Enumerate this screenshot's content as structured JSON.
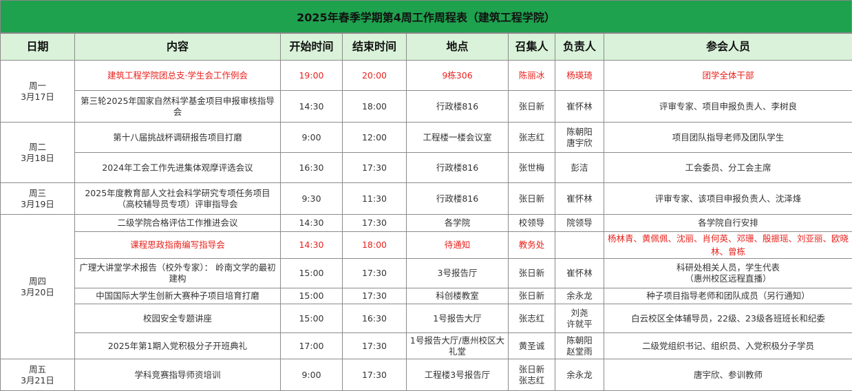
{
  "title": "2025年春季学期第4周工作周程表（建筑工程学院）",
  "columns": [
    "日期",
    "内容",
    "开始时间",
    "结束时间",
    "地点",
    "召集人",
    "负责人",
    "参会人员"
  ],
  "highlight_color": "#e8211c",
  "days": [
    {
      "day": "周一",
      "date": "3月17日",
      "events": [
        {
          "content": "建筑工程学院团总支·学生会工作例会",
          "start": "19:00",
          "end": "20:00",
          "place": "9栋306",
          "convener": "陈丽冰",
          "leader": "杨瑛琦",
          "attendees": "团学全体干部",
          "highlight": true
        },
        {
          "content": "第三轮2025年国家自然科学基金项目申报审核指导会",
          "start": "14:30",
          "end": "18:00",
          "place": "行政楼816",
          "convener": "张日新",
          "leader": "崔怀林",
          "attendees": "评审专家、项目申报负责人、李树良"
        }
      ]
    },
    {
      "day": "周二",
      "date": "3月18日",
      "events": [
        {
          "content": "第十八届挑战杯调研报告项目打磨",
          "start": "9:00",
          "end": "12:00",
          "place": "工程楼一楼会议室",
          "convener": "张志红",
          "leader": "陈朝阳\n唐宇欣",
          "attendees": "项目团队指导老师及团队学生"
        },
        {
          "content": "2024年工会工作先进集体观摩评选会议",
          "start": "16:30",
          "end": "17:30",
          "place": "行政楼816",
          "convener": "张世梅",
          "leader": "彭洁",
          "attendees": "工会委员、分工会主席"
        }
      ]
    },
    {
      "day": "周三",
      "date": "3月19日",
      "events": [
        {
          "content": "2025年度教育部人文社会科学研究专项任务项目（高校辅导员专项）评审指导会",
          "start": "9:30",
          "end": "11:30",
          "place": "行政楼816",
          "convener": "张日新",
          "leader": "崔怀林",
          "attendees": "评审专家、该项目申报负责人、沈泽烽"
        }
      ]
    },
    {
      "day": "周四",
      "date": "3月20日",
      "events": [
        {
          "content": "二级学院合格评估工作推进会议",
          "start": "14:30",
          "end": "17:30",
          "place": "各学院",
          "convener": "校领导",
          "leader": "院领导",
          "attendees": "各学院自行安排"
        },
        {
          "content": "课程思政指南编写指导会",
          "start": "14:30",
          "end": "18:00",
          "place": "待通知",
          "convener": "教务处",
          "attendees": "杨林青、黄佩佩、沈丽、肖何英、邓珊、殷振瑶、刘亚丽、欧晓林、曾栋",
          "highlight": true
        },
        {
          "content": "广理大讲堂学术报告（校外专家）： 岭南文学的最初建构",
          "start": "15:00",
          "end": "17:30",
          "place": "3号报告厅",
          "convener": "张日新",
          "leader": "崔怀林",
          "attendees": "科研处相关人员，学生代表\n（惠州校区远程直播）"
        },
        {
          "content": "中国国际大学生创新大赛种子项目培育打磨",
          "start": "15:00",
          "end": "17:30",
          "place": "科创楼教室",
          "convener": "张日新",
          "leader": "余永龙",
          "attendees": "种子项目指导老师和团队成员（另行通知）"
        },
        {
          "content": "校园安全专题讲座",
          "start": "15:00",
          "end": "16:30",
          "place": "1号报告大厅",
          "convener": "张志红",
          "leader": "刘尧\n许就平",
          "attendees": "白云校区全体辅导员，22级、23级各班班长和纪委"
        },
        {
          "content": "2025年第1期入党积极分子开班典礼",
          "start": "17:00",
          "end": "17:30",
          "place": "1号报告大厅/惠州校区大礼堂",
          "convener": "黄圣诚",
          "leader": "陈朝阳\n赵堂雨",
          "attendees": "二级党组织书记、组织员、入党积极分子学员"
        }
      ]
    },
    {
      "day": "周五",
      "date": "3月21日",
      "events": [
        {
          "content": "学科竞赛指导师资培训",
          "start": "9:00",
          "end": "17:30",
          "place": "工程楼3号报告厅",
          "convener": "张日新\n张志红",
          "leader": "余永龙",
          "attendees": "唐宇欣、参训教师"
        }
      ]
    }
  ]
}
